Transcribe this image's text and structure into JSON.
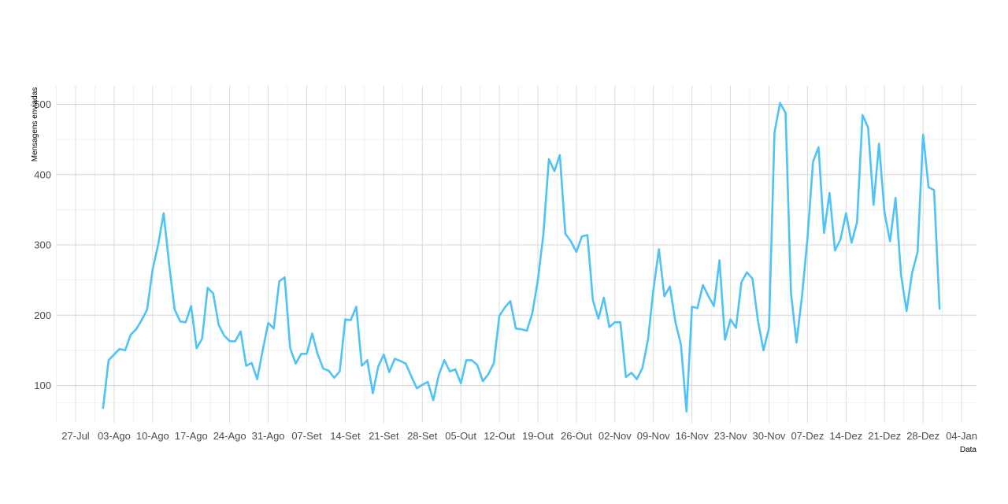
{
  "chart_data": {
    "type": "line",
    "title": "",
    "xlabel": "Data",
    "ylabel": "Mensagens enviadas",
    "x_tick_labels": [
      "27-Jul",
      "03-Ago",
      "10-Ago",
      "17-Ago",
      "24-Ago",
      "31-Ago",
      "07-Set",
      "14-Set",
      "21-Set",
      "28-Set",
      "05-Out",
      "12-Out",
      "19-Out",
      "26-Out",
      "02-Nov",
      "09-Nov",
      "16-Nov",
      "23-Nov",
      "30-Nov",
      "07-Dez",
      "14-Dez",
      "21-Dez",
      "28-Dez",
      "04-Jan"
    ],
    "y_ticks": [
      100,
      200,
      300,
      400,
      500
    ],
    "xlim_days": [
      -3.5,
      164.5
    ],
    "ylim": [
      50,
      525
    ],
    "grid": true,
    "line_color": "#4fc3f7",
    "series": [
      {
        "start": "2020-08-01",
        "interval": "1 day",
        "values": [
          68,
          136,
          144,
          152,
          150,
          172,
          180,
          193,
          208,
          265,
          300,
          345,
          272,
          208,
          191,
          190,
          213,
          153,
          167,
          239,
          231,
          186,
          171,
          163,
          163,
          177,
          128,
          132,
          109,
          150,
          189,
          181,
          248,
          254,
          153,
          131,
          145,
          145,
          174,
          144,
          124,
          121,
          111,
          120,
          194,
          193,
          212,
          128,
          136,
          89,
          127,
          144,
          119,
          138,
          135,
          131,
          113,
          96,
          101,
          105,
          79,
          115,
          136,
          120,
          123,
          103,
          136,
          136,
          129,
          106,
          116,
          132,
          199,
          211,
          220,
          181,
          180,
          178,
          203,
          250,
          315,
          422,
          405,
          428,
          316,
          305,
          290,
          312,
          314,
          221,
          195,
          225,
          183,
          190,
          190,
          112,
          118,
          109,
          125,
          165,
          236,
          294,
          227,
          241,
          190,
          158,
          63,
          212,
          210,
          243,
          227,
          213,
          278,
          165,
          194,
          182,
          247,
          261,
          252,
          192,
          150,
          182,
          460,
          502,
          488,
          232,
          161,
          227,
          310,
          418,
          439,
          317,
          374,
          292,
          308,
          345,
          303,
          332,
          485,
          467,
          357,
          444,
          346,
          305,
          367,
          257,
          206,
          260,
          290,
          457,
          382,
          378,
          209
        ]
      }
    ]
  }
}
